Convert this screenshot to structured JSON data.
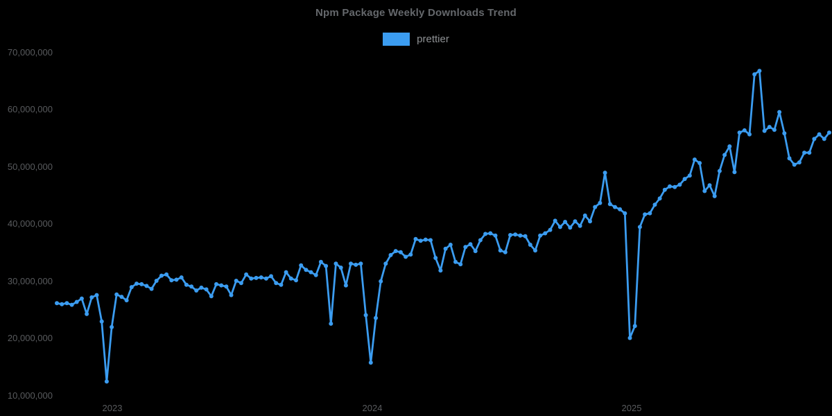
{
  "title": "Npm Package Weekly Downloads Trend",
  "legend": {
    "items": [
      {
        "label": "prettier",
        "color": "#3b9cf0"
      }
    ]
  },
  "colors": {
    "background": "#000000",
    "title_text": "#65686c",
    "axis_text": "#595b5e",
    "legend_text": "#8e9194",
    "series_blue": "#3b9cf0"
  },
  "chart_data": {
    "type": "line",
    "title": "Npm Package Weekly Downloads Trend",
    "xlabel": "",
    "ylabel": "",
    "grid": false,
    "legend_position": "top",
    "x_unit": "week",
    "ylim": [
      10000000,
      70000000
    ],
    "y_ticks": [
      70000000,
      60000000,
      50000000,
      40000000,
      30000000,
      20000000,
      10000000
    ],
    "x_ticks": [
      {
        "label": "2023",
        "position_index": 11.1
      },
      {
        "label": "2024",
        "position_index": 63.3
      },
      {
        "label": "2025",
        "position_index": 115.3
      }
    ],
    "annotations": {
      "holiday_dips": [
        {
          "near_tick": "2023",
          "low": 12400000
        },
        {
          "near_tick": "2024",
          "low": 15700000
        },
        {
          "near_tick": "2025",
          "low": 20000000
        }
      ],
      "peak": 66700000
    },
    "series": [
      {
        "name": "prettier",
        "color": "#3b9cf0",
        "point_style": "circle",
        "values": [
          26100000,
          25900000,
          26100000,
          25800000,
          26300000,
          26900000,
          24200000,
          27100000,
          27500000,
          22900000,
          12400000,
          21900000,
          27600000,
          27200000,
          26600000,
          28900000,
          29500000,
          29400000,
          29100000,
          28600000,
          30000000,
          30900000,
          31100000,
          30100000,
          30200000,
          30600000,
          29300000,
          29000000,
          28300000,
          28800000,
          28500000,
          27300000,
          29400000,
          29200000,
          29000000,
          27500000,
          30000000,
          29600000,
          31100000,
          30400000,
          30500000,
          30600000,
          30400000,
          30800000,
          29600000,
          29300000,
          31500000,
          30400000,
          30100000,
          32700000,
          31900000,
          31500000,
          31000000,
          33300000,
          32600000,
          22500000,
          33000000,
          32300000,
          29200000,
          33000000,
          32800000,
          33000000,
          24000000,
          15700000,
          23500000,
          29900000,
          33000000,
          34500000,
          35200000,
          35000000,
          34200000,
          34600000,
          37300000,
          37000000,
          37200000,
          37100000,
          34000000,
          31800000,
          35600000,
          36300000,
          33300000,
          32900000,
          35900000,
          36400000,
          35200000,
          37100000,
          38200000,
          38300000,
          37900000,
          35300000,
          35000000,
          38000000,
          38100000,
          37900000,
          37800000,
          36300000,
          35300000,
          37900000,
          38300000,
          38900000,
          40500000,
          39400000,
          40300000,
          39300000,
          40400000,
          39600000,
          41400000,
          40400000,
          42900000,
          43600000,
          48900000,
          43400000,
          42900000,
          42500000,
          41800000,
          20000000,
          22100000,
          39400000,
          41600000,
          41800000,
          43300000,
          44400000,
          45900000,
          46500000,
          46400000,
          46800000,
          47800000,
          48400000,
          51200000,
          50600000,
          45700000,
          46700000,
          44800000,
          49200000,
          52000000,
          53500000,
          49000000,
          55900000,
          56300000,
          55600000,
          66100000,
          66700000,
          56200000,
          56900000,
          56400000,
          59500000,
          55800000,
          51400000,
          50300000,
          50700000,
          52400000,
          52400000,
          54800000,
          55600000,
          54800000,
          55900000
        ]
      }
    ]
  }
}
